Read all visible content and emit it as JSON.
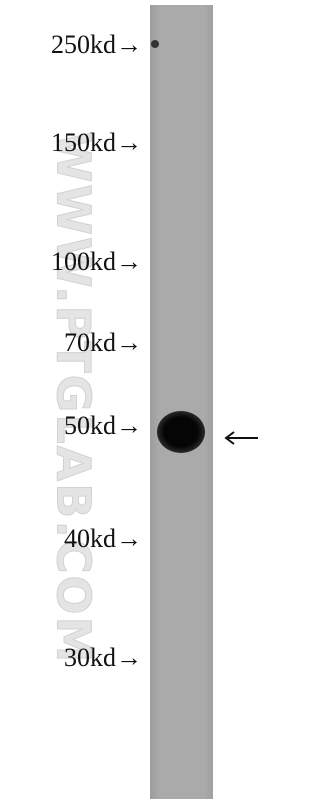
{
  "markers": [
    "250kd→",
    "150kd→",
    "100kd→",
    "70kd→",
    "50kd→",
    "40kd→",
    "30kd→"
  ],
  "watermark": "WWW.PTGLAB.COM"
}
